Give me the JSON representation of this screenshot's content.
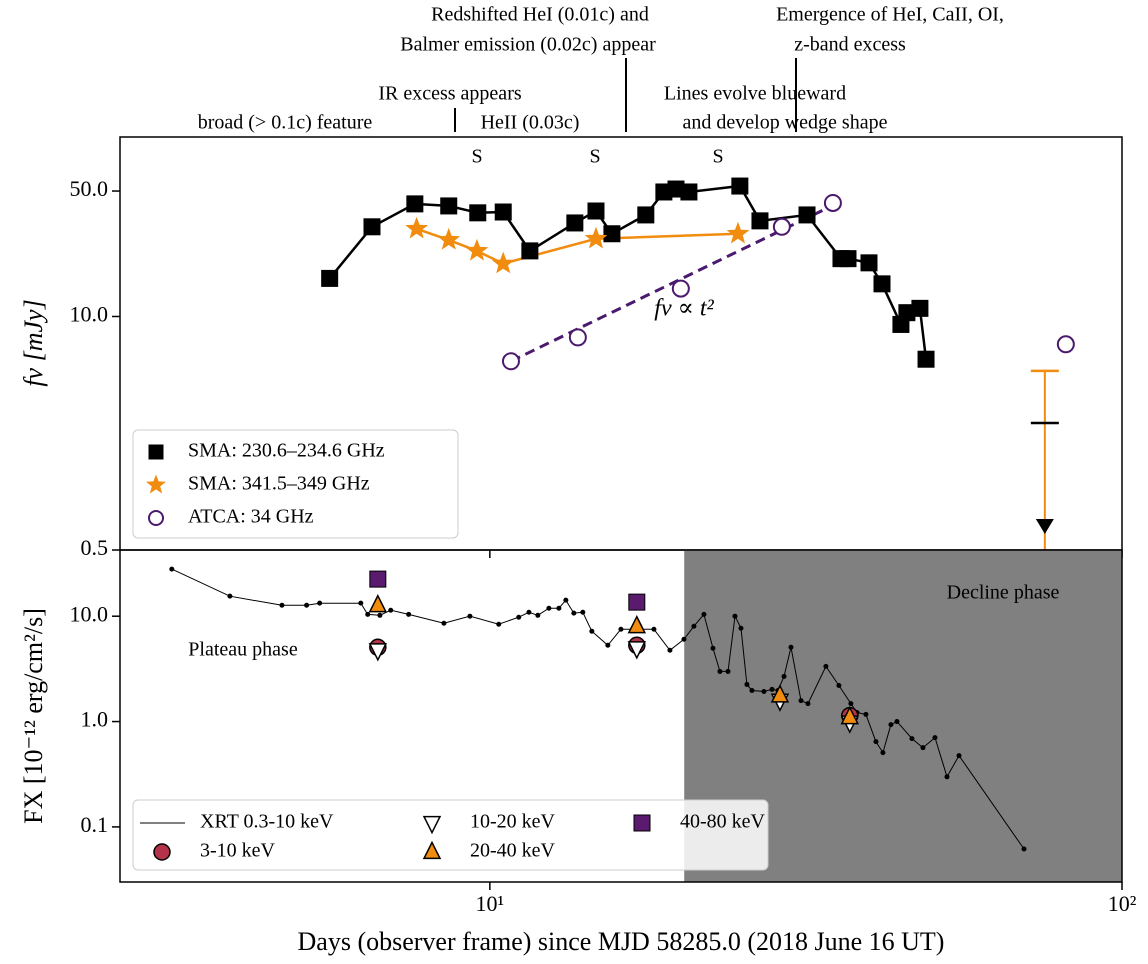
{
  "chart_data": [
    {
      "type": "line",
      "scale": "log",
      "ylabel": "fν [mJy]",
      "xlim": [
        2.6,
        100
      ],
      "ylim": [
        0.5,
        100
      ],
      "yticks": [
        0.5,
        {
          "value": 10,
          "label": "10.0"
        },
        {
          "value": 50,
          "label": "50.0"
        }
      ],
      "xticks": [
        10,
        100
      ],
      "annotations": [
        "Redshifted HeI (0.01c) and",
        "Balmer emission (0.02c) appear",
        "IR excess appears",
        "broad (> 0.1c) feature",
        "HeII (0.03c)",
        "Emergence of HeI, CaII, OI,",
        "z-band excess",
        "Lines evolve blueward",
        "and develop wedge shape"
      ],
      "spectra_labels": [
        "S",
        "S",
        "S"
      ],
      "fit_label": "fν ∝ t²",
      "fit_line": {
        "color": "#4b1a6e",
        "x": [
          10.8,
          34.5
        ],
        "values": [
          5.63,
          40.8
        ]
      },
      "series": [
        {
          "name": "SMA: 230.6–234.6 GHz",
          "color": "#000000",
          "marker": "square",
          "x": [
            5.58,
            6.51,
            7.61,
            8.61,
            9.57,
            10.5,
            11.57,
            13.63,
            14.72,
            15.6,
            17.65,
            18.85,
            19.7,
            20.65,
            24.86,
            26.75,
            31.75,
            35.93,
            36.86,
            39.79,
            41.72,
            44.7,
            45.68,
            47.9,
            48.98
          ],
          "values": [
            16.3,
            31.6,
            42.4,
            41.3,
            37.8,
            38.2,
            23.2,
            33.2,
            38.7,
            28.9,
            36.8,
            49.4,
            51.3,
            49.4,
            53.3,
            34.1,
            36.8,
            21.0,
            21.0,
            19.9,
            15.2,
            9.03,
            10.5,
            11.1,
            5.78
          ]
        },
        {
          "name": "SMA: 341.5–349 GHz",
          "color": "#f28c0f",
          "marker": "star",
          "x": [
            7.66,
            8.61,
            9.54,
            10.5,
            14.72,
            24.69
          ],
          "values": [
            30.8,
            26.7,
            23.2,
            19.7,
            27.1,
            28.9
          ]
        },
        {
          "name": "ATCA: 34 GHz",
          "color": "#4b1a6e",
          "marker": "open-circle",
          "x": [
            10.8,
            13.78,
            20.05,
            28.97,
            34.89,
            81.5
          ],
          "values": [
            5.63,
            7.65,
            14.3,
            31.6,
            42.9,
            7.0
          ]
        }
      ],
      "late_point": {
        "x": 75.5,
        "value": 2.55,
        "upper": 4.98
      },
      "late_upper_limit": {
        "x": 75.5,
        "value": 0.68
      }
    },
    {
      "type": "line",
      "scale": "log",
      "ylabel": "FX [10⁻¹² erg/cm²/s]",
      "xlabel": "Days (observer frame) since MJD 58285.0 (2018 June 16 UT)",
      "xlim": [
        2.6,
        100
      ],
      "ylim": [
        0.03,
        42.5
      ],
      "yticks": [
        0.1,
        {
          "value": 1,
          "label": "1.0"
        },
        {
          "value": 10,
          "label": "10.0"
        }
      ],
      "xticks": [
        {
          "value": 10,
          "label": "10¹"
        },
        {
          "value": 100,
          "label": "10²"
        }
      ],
      "decline_start": 20.3,
      "region_labels": [
        "Plateau phase",
        "Decline phase"
      ],
      "series": [
        {
          "name": "XRT 0.3-10 keV",
          "color": "#000000",
          "marker": "line",
          "x": [
            3.14,
            3.88,
            4.69,
            5.13,
            5.38,
            6.25,
            6.41,
            6.7,
            6.97,
            7.44,
            8.46,
            9.3,
            10.33,
            11.11,
            11.53,
            11.91,
            12.4,
            12.86,
            13.19,
            13.58,
            14.03,
            14.5,
            15.37,
            16.12,
            17.27,
            18.18,
            19.27,
            20.28,
            21.03,
            21.81,
            22.54,
            23.12,
            23.81,
            24.42,
            24.96,
            25.51,
            25.98,
            27.14,
            27.95,
            28.57,
            29.2,
            29.95,
            31.06,
            31.86,
            34.01,
            35.66,
            37.25,
            38.08,
            39.35,
            40.81,
            41.86,
            43.1,
            44.06,
            46.53,
            48.43,
            50.6,
            52.86,
            55.23,
            69.98
          ],
          "values": [
            28.0,
            15.5,
            12.7,
            12.7,
            13.3,
            13.3,
            10.4,
            10.2,
            11.4,
            10.4,
            8.58,
            10.0,
            8.39,
            9.78,
            10.9,
            10.2,
            11.9,
            11.9,
            14.2,
            10.7,
            10.9,
            7.2,
            5.3,
            7.52,
            7.52,
            7.52,
            4.75,
            6.04,
            8.03,
            10.4,
            4.96,
            2.99,
            2.99,
            10.0,
            7.69,
            2.25,
            1.97,
            1.93,
            2.02,
            1.97,
            2.68,
            5.07,
            1.58,
            1.48,
            3.34,
            2.2,
            1.48,
            1.22,
            1.17,
            0.645,
            0.507,
            0.936,
            1.0,
            0.689,
            0.565,
            0.704,
            0.299,
            0.475,
            0.0617
          ]
        },
        {
          "name": "3-10 keV",
          "color": "#b5334a",
          "marker": "circle",
          "x": [
            6.65,
            17.08,
            37.1
          ],
          "values": [
            5.07,
            5.3,
            1.14
          ]
        },
        {
          "name": "10-20 keV",
          "color": "#ffffff",
          "marker": "triangle-down",
          "x": [
            6.65,
            17.08,
            28.77,
            37.1
          ],
          "values": [
            4.75,
            4.96,
            1.58,
            0.98
          ]
        },
        {
          "name": "20-40 keV",
          "color": "#f28c0f",
          "marker": "triangle-up",
          "x": [
            6.65,
            17.08,
            28.77,
            37.1
          ],
          "values": [
            12.7,
            8.03,
            1.77,
            1.1
          ]
        },
        {
          "name": "40-80 keV",
          "color": "#5a1a6e",
          "marker": "square",
          "x": [
            6.65,
            17.08
          ],
          "values": [
            22.5,
            13.6
          ]
        }
      ]
    }
  ]
}
